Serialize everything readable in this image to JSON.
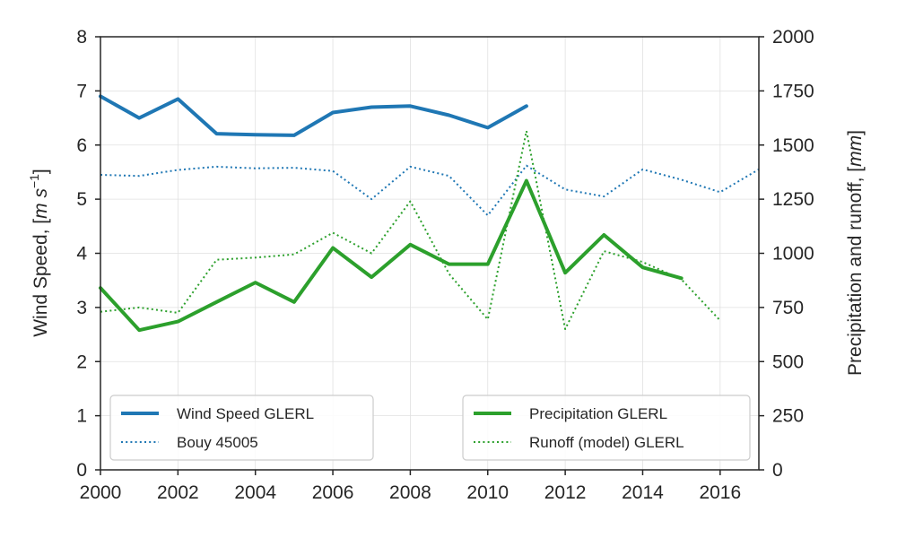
{
  "chart_data": {
    "type": "line",
    "xlim": [
      2000,
      2017
    ],
    "x_ticks": [
      2000,
      2002,
      2004,
      2006,
      2008,
      2010,
      2012,
      2014,
      2016
    ],
    "left_axis": {
      "label_prefix": "Wind Speed, [",
      "label_unit_m": "m",
      "label_unit_s": " s",
      "label_exp": "−1",
      "label_suffix": "]",
      "ylim": [
        0,
        8
      ],
      "ticks": [
        0,
        1,
        2,
        3,
        4,
        5,
        6,
        7,
        8
      ]
    },
    "right_axis": {
      "label_prefix": "Precipitation and runoff, [",
      "label_unit": "mm",
      "label_suffix": "]",
      "ylim": [
        0,
        2000
      ],
      "ticks": [
        0,
        250,
        500,
        750,
        1000,
        1250,
        1500,
        1750,
        2000
      ]
    },
    "grid": true,
    "series": [
      {
        "name": "Wind Speed GLERL",
        "axis": "left",
        "color": "#1f77b4",
        "style": "solid",
        "x": [
          2000,
          2001,
          2002,
          2003,
          2004,
          2005,
          2006,
          2007,
          2008,
          2009,
          2010,
          2011
        ],
        "y": [
          6.9,
          6.5,
          6.85,
          6.21,
          6.19,
          6.18,
          6.6,
          6.7,
          6.72,
          6.55,
          6.32,
          6.72
        ]
      },
      {
        "name": "Bouy 45005",
        "axis": "left",
        "color": "#1f77b4",
        "style": "dotted",
        "x": [
          2000,
          2001,
          2002,
          2003,
          2004,
          2005,
          2006,
          2007,
          2008,
          2009,
          2010,
          2011,
          2012,
          2013,
          2014,
          2015,
          2016,
          2017
        ],
        "y": [
          5.45,
          5.43,
          5.54,
          5.6,
          5.57,
          5.58,
          5.52,
          5.0,
          5.6,
          5.43,
          4.7,
          5.62,
          5.18,
          5.05,
          5.55,
          5.36,
          5.13,
          5.55
        ]
      },
      {
        "name": "Precipitation GLERL",
        "axis": "right",
        "color": "#2ca02c",
        "style": "solid",
        "x": [
          2000,
          2001,
          2002,
          2003,
          2004,
          2005,
          2006,
          2007,
          2008,
          2009,
          2010,
          2011,
          2012,
          2013,
          2014,
          2015
        ],
        "y": [
          840,
          645,
          685,
          775,
          865,
          775,
          1025,
          890,
          1040,
          950,
          950,
          1335,
          910,
          1085,
          935,
          885
        ]
      },
      {
        "name": "Runoff (model) GLERL",
        "axis": "right",
        "color": "#2ca02c",
        "style": "dotted",
        "x": [
          2000,
          2001,
          2002,
          2003,
          2004,
          2005,
          2006,
          2007,
          2008,
          2009,
          2010,
          2011,
          2012,
          2013,
          2014,
          2015,
          2016
        ],
        "y": [
          730,
          750,
          725,
          970,
          980,
          995,
          1095,
          1000,
          1240,
          905,
          695,
          1565,
          650,
          1010,
          960,
          880,
          690
        ]
      }
    ],
    "legends": [
      {
        "placement": "lower-left",
        "entries": [
          "Wind Speed GLERL",
          "Bouy 45005"
        ]
      },
      {
        "placement": "lower-right",
        "entries": [
          "Precipitation GLERL",
          "Runoff (model) GLERL"
        ]
      }
    ]
  }
}
